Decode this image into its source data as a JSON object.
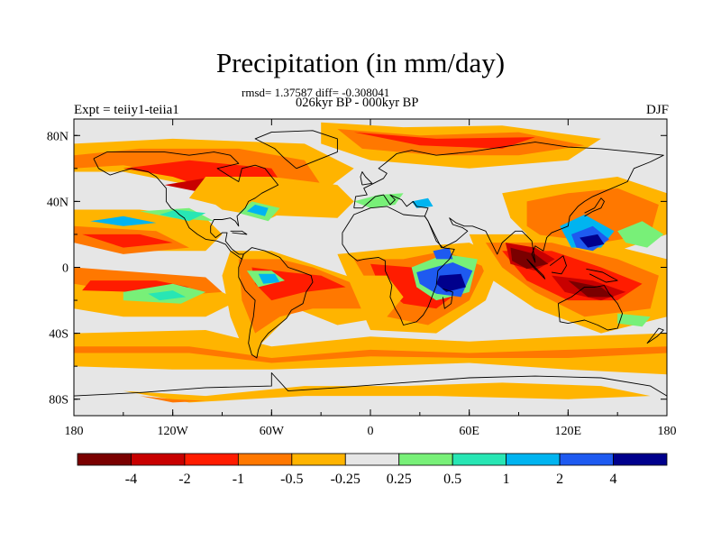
{
  "header": {
    "title": "Precipitation (in mm/day)",
    "stats": "rmsd= 1.37587 diff= -0.308041",
    "periods": "026kyr BP - 000kyr BP",
    "experiment": "Expt = teiiy1-teiia1",
    "season": "DJF"
  },
  "axes": {
    "x_ticks": [
      "180",
      "120W",
      "60W",
      "0",
      "60E",
      "120E",
      "180"
    ],
    "y_ticks": [
      "80N",
      "40N",
      "0",
      "40S",
      "80S"
    ]
  },
  "colorbar": {
    "labels": [
      "-4",
      "-2",
      "-1",
      "-0.5",
      "-0.25",
      "0.25",
      "0.5",
      "1",
      "2",
      "4"
    ],
    "colors": [
      "#7a0000",
      "#c80000",
      "#ff1c00",
      "#ff7800",
      "#ffb400",
      "#e6e6e6",
      "#78f078",
      "#28e6b4",
      "#00b4f0",
      "#1e5af0",
      "#00008c"
    ]
  },
  "palette": {
    "neutral": "#e6e6e6",
    "coast": "#000000",
    "frame": "#000000"
  }
}
